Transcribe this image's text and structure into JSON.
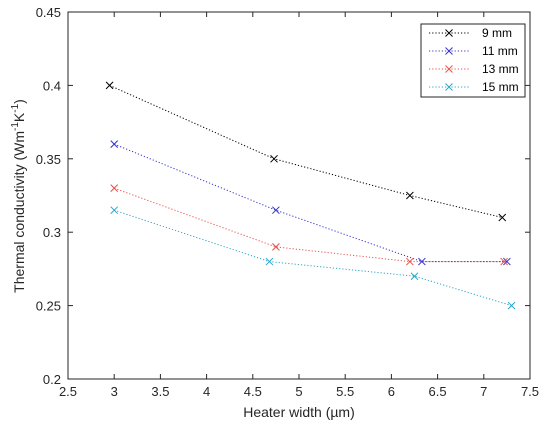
{
  "chart_data": {
    "type": "line",
    "xlabel": "Heater width (µm)",
    "ylabel_main": "Thermal conductivity (Wm",
    "ylabel_sup1": "-1",
    "ylabel_mid": "K",
    "ylabel_sup2": "-1",
    "ylabel_end": ")",
    "xlim": [
      2.5,
      7.5
    ],
    "ylim": [
      0.2,
      0.45
    ],
    "xticks": [
      "2.5",
      "3",
      "3.5",
      "4",
      "4.5",
      "5",
      "5.5",
      "6",
      "6.5",
      "7",
      "7.5"
    ],
    "yticks": [
      "0.2",
      "0.25",
      "0.3",
      "0.35",
      "0.4",
      "0.45"
    ],
    "legend_position": "top-right",
    "grid": false,
    "marker": "x",
    "line_style": "dotted",
    "series": [
      {
        "name": "9 mm",
        "color": "#000000",
        "x": [
          2.95,
          4.73,
          6.2,
          7.2
        ],
        "y": [
          0.4,
          0.35,
          0.325,
          0.31
        ]
      },
      {
        "name": "11 mm",
        "color": "#3333cc",
        "x": [
          3.0,
          4.75,
          6.33,
          7.25
        ],
        "y": [
          0.36,
          0.315,
          0.28,
          0.28
        ]
      },
      {
        "name": "13 mm",
        "color": "#e8504a",
        "x": [
          3.0,
          4.75,
          6.2,
          7.22
        ],
        "y": [
          0.33,
          0.29,
          0.28,
          0.28
        ]
      },
      {
        "name": "15 mm",
        "color": "#2aa6c8",
        "x": [
          3.0,
          4.68,
          6.25,
          7.3
        ],
        "y": [
          0.315,
          0.28,
          0.27,
          0.25
        ]
      }
    ]
  }
}
